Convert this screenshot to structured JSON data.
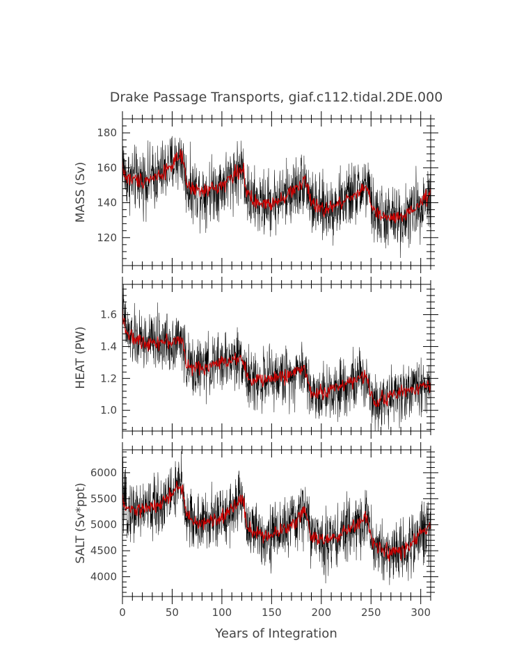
{
  "title": "Drake Passage Transports, giaf.c112.tidal.2DE.000",
  "xlabel": "Years of Integration",
  "colors": {
    "raw": "#000000",
    "smoothed": "#cc0000"
  },
  "chart_data": [
    {
      "type": "line",
      "ylabel": "MASS (Sv)",
      "xlim": [
        0,
        310
      ],
      "ylim": [
        104,
        188
      ],
      "yticks": [
        120,
        140,
        160,
        180
      ],
      "xticks": [
        0,
        50,
        100,
        150,
        200,
        250,
        300
      ],
      "xtick_labels_shown": false,
      "series": [
        {
          "style": "raw",
          "noise": 9,
          "x": [
            0,
            1,
            3,
            5,
            10,
            20,
            30,
            40,
            50,
            55,
            60,
            62,
            65,
            70,
            80,
            90,
            100,
            110,
            120,
            122,
            125,
            130,
            140,
            150,
            160,
            170,
            180,
            183,
            186,
            190,
            200,
            210,
            220,
            230,
            240,
            245,
            248,
            252,
            260,
            270,
            280,
            290,
            300,
            310
          ],
          "y": [
            172,
            160,
            155,
            154,
            153,
            153,
            154,
            157,
            162,
            165,
            166,
            158,
            150,
            148,
            146,
            148,
            150,
            155,
            160,
            158,
            145,
            141,
            139,
            140,
            143,
            146,
            151,
            154,
            149,
            139,
            136,
            137,
            140,
            144,
            147,
            150,
            145,
            135,
            132,
            131,
            131,
            134,
            140,
            145
          ]
        },
        {
          "style": "smoothed",
          "noise": 2.2,
          "x": [
            0,
            1,
            3,
            5,
            10,
            20,
            30,
            40,
            50,
            55,
            60,
            62,
            65,
            70,
            80,
            90,
            100,
            110,
            120,
            122,
            125,
            130,
            140,
            150,
            160,
            170,
            180,
            183,
            186,
            190,
            200,
            210,
            220,
            230,
            240,
            245,
            248,
            252,
            260,
            270,
            280,
            290,
            300,
            310
          ],
          "y": [
            163,
            158,
            155,
            154,
            153,
            153,
            154,
            157,
            162,
            165,
            166,
            158,
            150,
            148,
            146,
            148,
            150,
            155,
            160,
            158,
            145,
            141,
            139,
            140,
            143,
            146,
            151,
            154,
            149,
            139,
            136,
            137,
            140,
            144,
            147,
            150,
            145,
            135,
            132,
            131,
            131,
            134,
            140,
            145
          ]
        }
      ]
    },
    {
      "type": "line",
      "ylabel": "HEAT (PW)",
      "xlim": [
        0,
        310
      ],
      "ylim": [
        0.87,
        1.79
      ],
      "yticks": [
        1.0,
        1.2,
        1.4,
        1.6
      ],
      "ytick_labels": [
        "1.0",
        "1.2",
        "1.4",
        "1.6"
      ],
      "xticks": [
        0,
        50,
        100,
        150,
        200,
        250,
        300
      ],
      "xtick_labels_shown": false,
      "series": [
        {
          "style": "raw",
          "noise": 0.09,
          "x": [
            0,
            1,
            3,
            6,
            10,
            20,
            30,
            40,
            50,
            55,
            60,
            62,
            65,
            70,
            80,
            90,
            100,
            110,
            120,
            122,
            126,
            130,
            140,
            150,
            160,
            170,
            180,
            183,
            186,
            190,
            200,
            210,
            220,
            230,
            240,
            245,
            248,
            252,
            260,
            270,
            280,
            290,
            300,
            310
          ],
          "y": [
            1.75,
            1.6,
            1.52,
            1.47,
            1.45,
            1.43,
            1.43,
            1.43,
            1.43,
            1.44,
            1.44,
            1.38,
            1.28,
            1.26,
            1.27,
            1.28,
            1.3,
            1.32,
            1.34,
            1.3,
            1.2,
            1.18,
            1.19,
            1.2,
            1.21,
            1.23,
            1.26,
            1.27,
            1.2,
            1.1,
            1.11,
            1.13,
            1.16,
            1.18,
            1.2,
            1.21,
            1.16,
            1.06,
            1.07,
            1.09,
            1.11,
            1.13,
            1.15,
            1.17
          ]
        },
        {
          "style": "smoothed",
          "noise": 0.022,
          "x": [
            0,
            1,
            3,
            6,
            10,
            20,
            30,
            40,
            50,
            55,
            60,
            62,
            65,
            70,
            80,
            90,
            100,
            110,
            120,
            122,
            126,
            130,
            140,
            150,
            160,
            170,
            180,
            183,
            186,
            190,
            200,
            210,
            220,
            230,
            240,
            245,
            248,
            252,
            260,
            270,
            280,
            290,
            300,
            310
          ],
          "y": [
            1.62,
            1.58,
            1.52,
            1.47,
            1.45,
            1.43,
            1.43,
            1.43,
            1.43,
            1.44,
            1.44,
            1.38,
            1.28,
            1.26,
            1.27,
            1.28,
            1.3,
            1.32,
            1.34,
            1.3,
            1.2,
            1.18,
            1.19,
            1.2,
            1.21,
            1.23,
            1.26,
            1.27,
            1.2,
            1.1,
            1.11,
            1.13,
            1.16,
            1.18,
            1.2,
            1.21,
            1.16,
            1.06,
            1.07,
            1.09,
            1.11,
            1.13,
            1.15,
            1.17
          ]
        }
      ]
    },
    {
      "type": "line",
      "ylabel": "SALT (Sv*ppt)",
      "xlim": [
        0,
        310
      ],
      "ylim": [
        3620,
        6440
      ],
      "yticks": [
        4000,
        4500,
        5000,
        5500,
        6000
      ],
      "xticks": [
        0,
        50,
        100,
        150,
        200,
        250,
        300
      ],
      "xtick_labels": [
        "0",
        "50",
        "100",
        "150",
        "200",
        "250",
        "300"
      ],
      "series": [
        {
          "style": "raw",
          "noise": 290,
          "x": [
            0,
            1,
            3,
            5,
            10,
            20,
            30,
            40,
            50,
            55,
            60,
            62,
            65,
            70,
            80,
            90,
            100,
            110,
            120,
            122,
            125,
            130,
            140,
            150,
            160,
            170,
            180,
            183,
            186,
            190,
            200,
            210,
            220,
            230,
            240,
            245,
            248,
            252,
            260,
            270,
            280,
            290,
            300,
            310
          ],
          "y": [
            5750,
            5400,
            5320,
            5300,
            5280,
            5290,
            5320,
            5420,
            5600,
            5700,
            5750,
            5450,
            5150,
            5080,
            5010,
            5080,
            5150,
            5300,
            5500,
            5450,
            5000,
            4880,
            4800,
            4810,
            4900,
            5000,
            5200,
            5300,
            5150,
            4800,
            4700,
            4710,
            4800,
            4950,
            5050,
            5150,
            4950,
            4620,
            4520,
            4470,
            4480,
            4600,
            4820,
            5000
          ]
        },
        {
          "style": "smoothed",
          "noise": 70,
          "x": [
            0,
            1,
            3,
            5,
            10,
            20,
            30,
            40,
            50,
            55,
            60,
            62,
            65,
            70,
            80,
            90,
            100,
            110,
            120,
            122,
            125,
            130,
            140,
            150,
            160,
            170,
            180,
            183,
            186,
            190,
            200,
            210,
            220,
            230,
            240,
            245,
            248,
            252,
            260,
            270,
            280,
            290,
            300,
            310
          ],
          "y": [
            5500,
            5380,
            5320,
            5300,
            5280,
            5290,
            5320,
            5420,
            5600,
            5700,
            5750,
            5450,
            5150,
            5080,
            5010,
            5080,
            5150,
            5300,
            5500,
            5450,
            5000,
            4880,
            4800,
            4810,
            4900,
            5000,
            5200,
            5300,
            5150,
            4800,
            4700,
            4710,
            4800,
            4950,
            5050,
            5150,
            4950,
            4620,
            4520,
            4470,
            4480,
            4600,
            4820,
            5000
          ]
        }
      ]
    }
  ]
}
